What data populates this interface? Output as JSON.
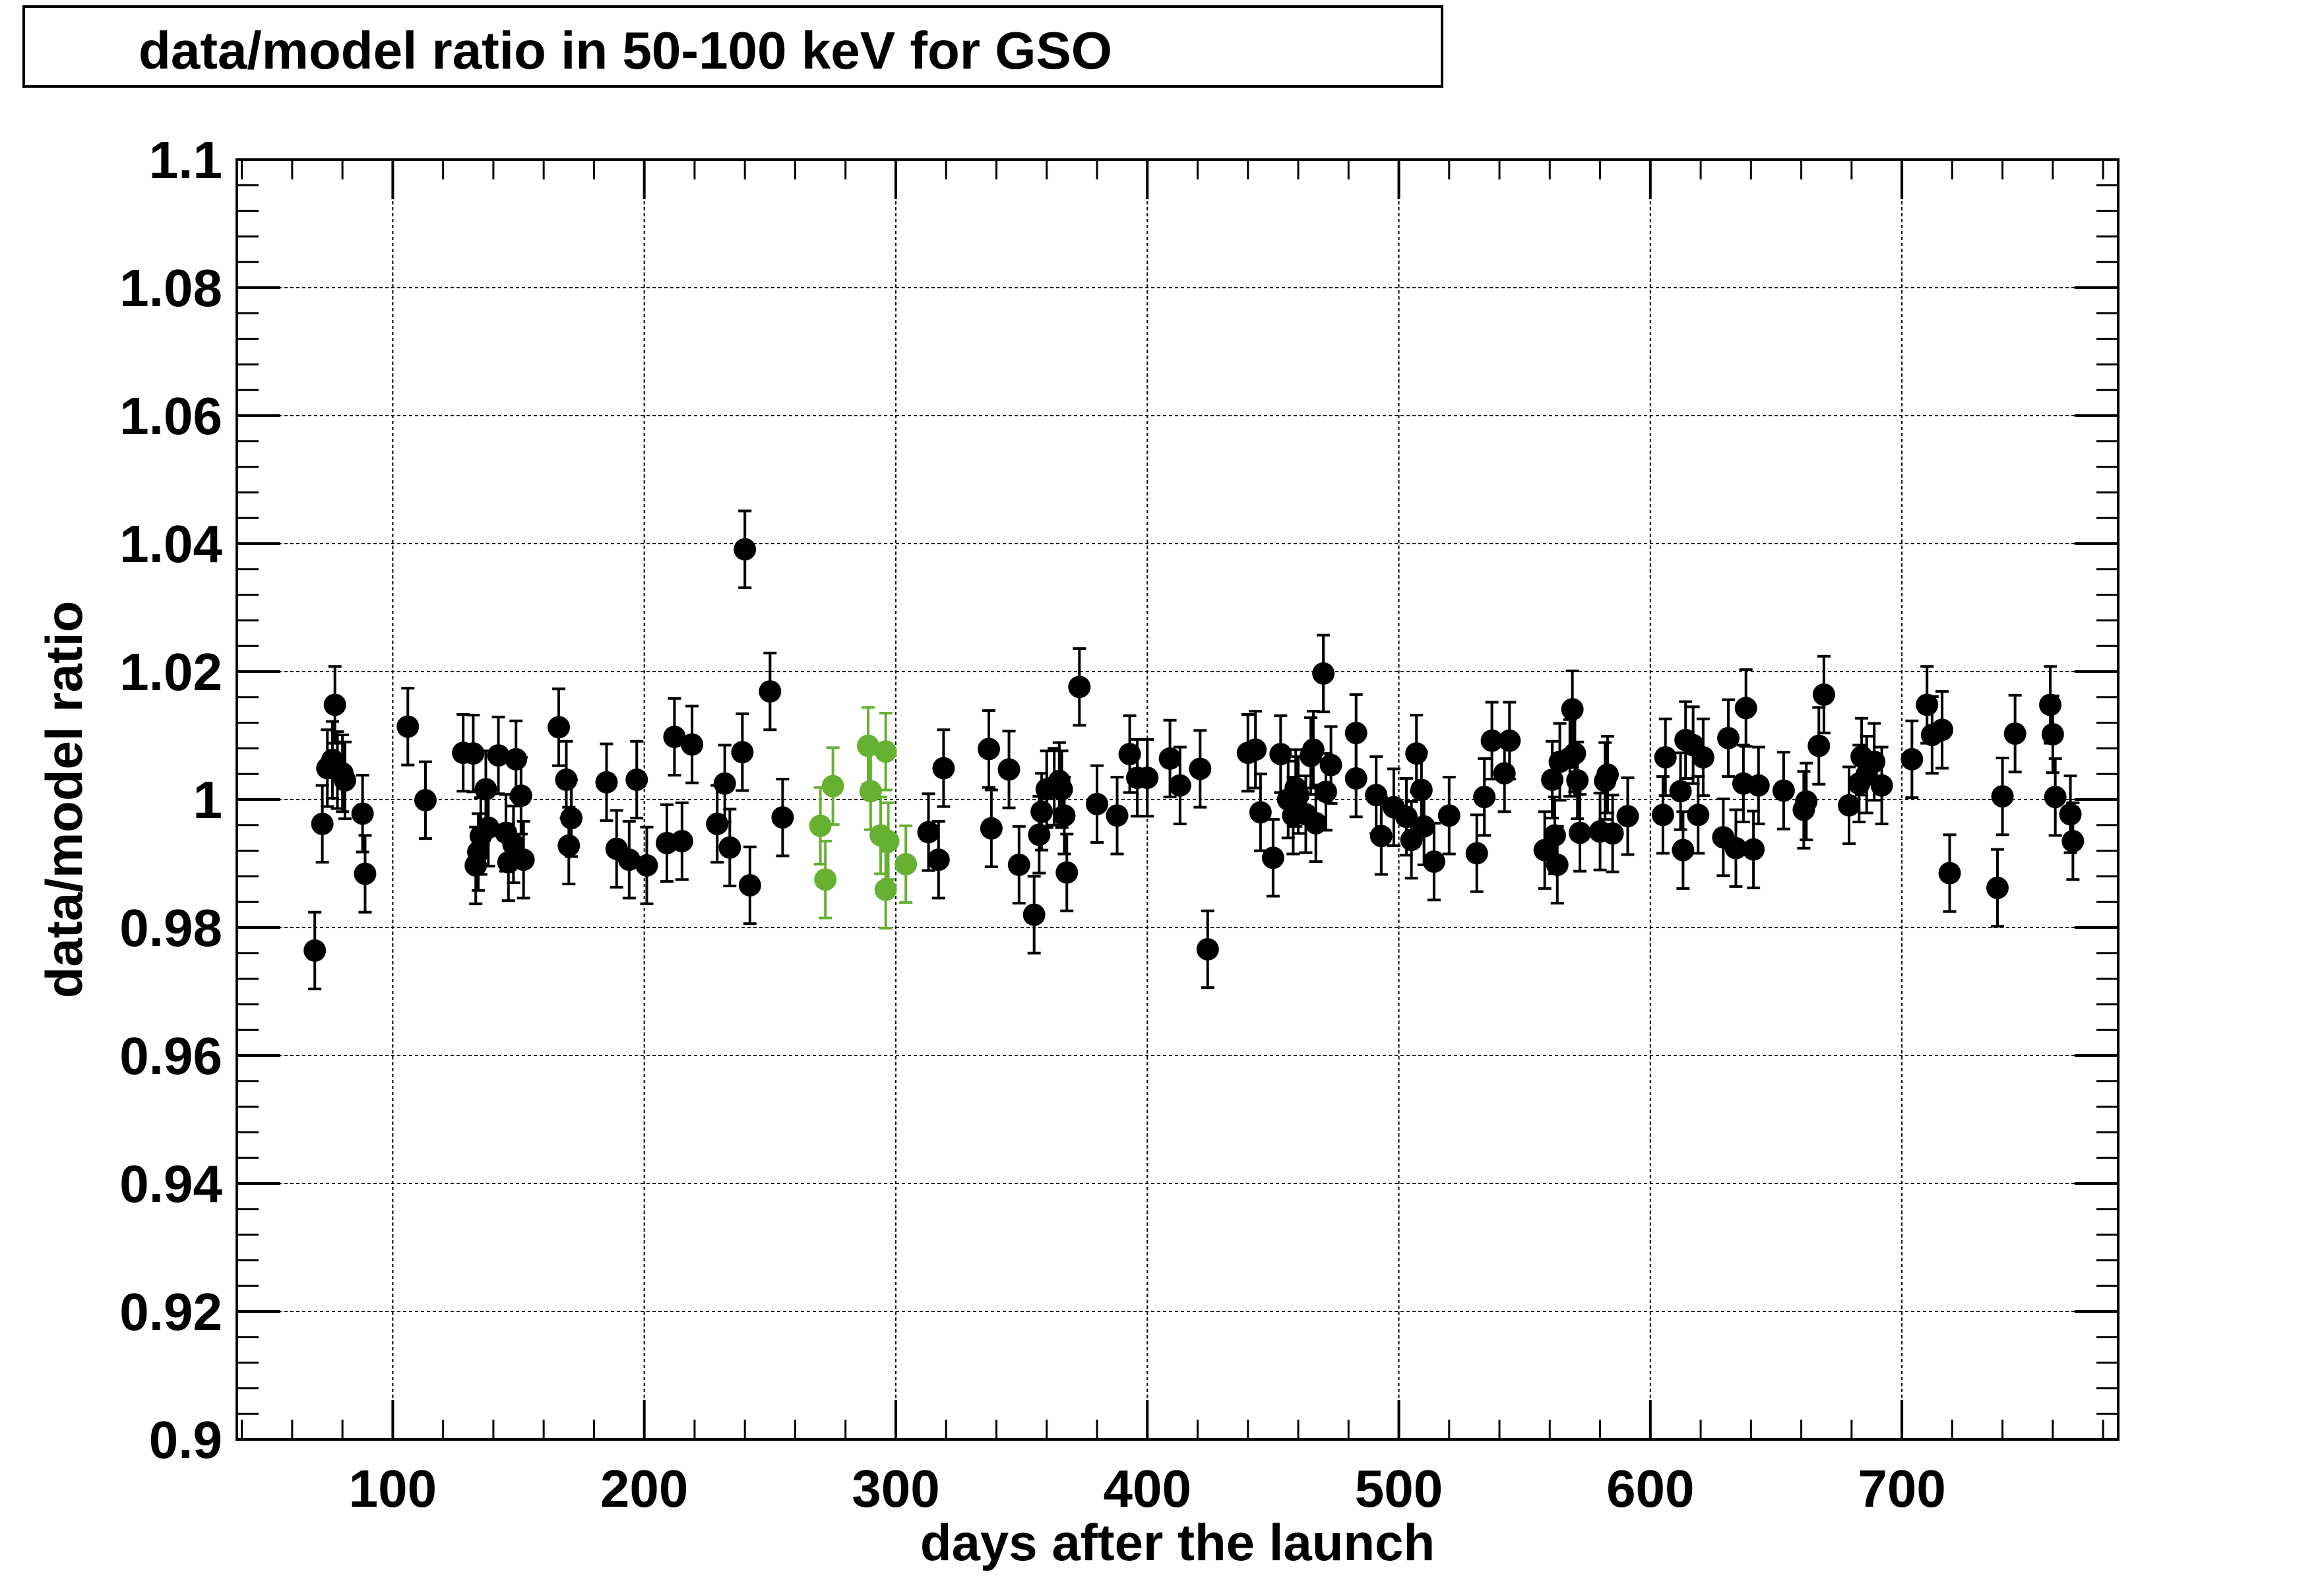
{
  "chart_data": {
    "type": "scatter",
    "title": "data/model ratio in 50-100 keV for GSO",
    "xlabel": "days after the launch",
    "ylabel": "data/model ratio",
    "xlim": [
      38,
      786
    ],
    "ylim": [
      0.9,
      1.1
    ],
    "xticks": [
      100,
      200,
      300,
      400,
      500,
      600,
      700
    ],
    "xtick_labels": [
      "100",
      "200",
      "300",
      "400",
      "500",
      "600",
      "700"
    ],
    "yticks": [
      0.9,
      0.92,
      0.94,
      0.96,
      0.98,
      1.0,
      1.02,
      1.04,
      1.06,
      1.08,
      1.1
    ],
    "ytick_labels": [
      "0.9",
      "0.92",
      "0.94",
      "0.96",
      "0.98",
      "1",
      "1.02",
      "1.04",
      "1.06",
      "1.08",
      "1.1"
    ],
    "grid": true,
    "colors": {
      "series_main": "#000000",
      "series_highlight": "#66b032",
      "grid": "#000000"
    },
    "series": [
      {
        "color": "#000000",
        "error": 0.006,
        "points": [
          [
            69,
            0.9764
          ],
          [
            72,
            0.9962
          ],
          [
            74,
            1.0049
          ],
          [
            76,
            1.0062
          ],
          [
            77,
            1.0148
          ],
          [
            78,
            1.0046
          ],
          [
            80,
            1.0041
          ],
          [
            81,
            1.003
          ],
          [
            88,
            0.9978
          ],
          [
            89,
            0.9884
          ],
          [
            106,
            1.0114
          ],
          [
            113,
            0.9999
          ],
          [
            128,
            1.0073
          ],
          [
            132,
            1.0072
          ],
          [
            133,
            0.9897
          ],
          [
            134,
            0.9918
          ],
          [
            135,
            0.9943
          ],
          [
            137,
            1.0016
          ],
          [
            138,
            0.9956
          ],
          [
            142,
            1.0069
          ],
          [
            145,
            0.9948
          ],
          [
            146,
            0.9902
          ],
          [
            148,
            0.993
          ],
          [
            149,
            1.0063
          ],
          [
            151,
            1.0006
          ],
          [
            152,
            0.9906
          ],
          [
            166,
            1.0113
          ],
          [
            169,
            1.0031
          ],
          [
            170,
            0.9928
          ],
          [
            171,
            0.9971
          ],
          [
            185,
            1.0027
          ],
          [
            189,
            0.9923
          ],
          [
            194,
            0.9906
          ],
          [
            197,
            1.0031
          ],
          [
            201,
            0.9897
          ],
          [
            209,
            0.9932
          ],
          [
            212,
            1.0098
          ],
          [
            215,
            0.9935
          ],
          [
            219,
            1.0086
          ],
          [
            229,
            0.9962
          ],
          [
            232,
            1.0025
          ],
          [
            234,
            0.9925
          ],
          [
            239,
            1.0074
          ],
          [
            240,
            1.0391
          ],
          [
            242,
            0.9866
          ],
          [
            250,
            1.0169
          ],
          [
            255,
            0.9972
          ],
          [
            313,
            0.9949
          ],
          [
            317,
            0.9906
          ],
          [
            319,
            1.0049
          ],
          [
            337,
            1.0079
          ],
          [
            338,
            0.9955
          ],
          [
            345,
            1.0047
          ],
          [
            349,
            0.9898
          ],
          [
            355,
            0.982
          ],
          [
            357,
            0.9945
          ],
          [
            358,
            0.9981
          ],
          [
            360,
            1.0016
          ],
          [
            363,
            1.002
          ],
          [
            365,
            1.0029
          ],
          [
            366,
            1.0016
          ],
          [
            367,
            0.9975
          ],
          [
            368,
            0.9886
          ],
          [
            373,
            1.0176
          ],
          [
            380,
            0.9993
          ],
          [
            388,
            0.9975
          ],
          [
            393,
            1.0071
          ],
          [
            396,
            1.0034
          ],
          [
            400,
            1.0034
          ],
          [
            409,
            1.0064
          ],
          [
            413,
            1.0022
          ],
          [
            421,
            1.0048
          ],
          [
            424,
            0.9766
          ],
          [
            440,
            1.0073
          ],
          [
            443,
            1.0078
          ],
          [
            445,
            0.998
          ],
          [
            450,
            0.9909
          ],
          [
            453,
            1.0071
          ],
          [
            456,
            1.0
          ],
          [
            458,
            0.9975
          ],
          [
            459,
            1.0018
          ],
          [
            460,
            1.0007
          ],
          [
            463,
            0.9977
          ],
          [
            465,
            1.0068
          ],
          [
            466,
            1.0078
          ],
          [
            467,
            0.9963
          ],
          [
            470,
            1.0197
          ],
          [
            471,
            1.0012
          ],
          [
            473,
            1.0054
          ],
          [
            483,
            1.0033
          ],
          [
            483,
            1.0104
          ],
          [
            491,
            1.0007
          ],
          [
            493,
            0.9943
          ],
          [
            498,
            0.9988
          ],
          [
            503,
            0.9973
          ],
          [
            505,
            0.9937
          ],
          [
            507,
            1.0072
          ],
          [
            509,
            1.0015
          ],
          [
            510,
            0.9958
          ],
          [
            514,
            0.9903
          ],
          [
            520,
            0.9975
          ],
          [
            531,
            0.9916
          ],
          [
            534,
            1.0004
          ],
          [
            537,
            1.0092
          ],
          [
            542,
            1.0041
          ],
          [
            544,
            1.0092
          ],
          [
            558,
            0.9921
          ],
          [
            561,
            1.0031
          ],
          [
            562,
            0.9944
          ],
          [
            563,
            0.9898
          ],
          [
            564,
            1.0059
          ],
          [
            568,
            1.0065
          ],
          [
            569,
            1.0141
          ],
          [
            570,
            1.0072
          ],
          [
            571,
            1.003
          ],
          [
            572,
            0.9948
          ],
          [
            580,
            0.995
          ],
          [
            582,
            1.0029
          ],
          [
            583,
            1.0039
          ],
          [
            585,
            0.9947
          ],
          [
            591,
            0.9974
          ],
          [
            605,
            0.9976
          ],
          [
            606,
            1.0066
          ],
          [
            612,
            1.0013
          ],
          [
            613,
            0.9921
          ],
          [
            614,
            1.0093
          ],
          [
            617,
            1.0085
          ],
          [
            619,
            0.9976
          ],
          [
            621,
            1.0066
          ],
          [
            629,
            0.9941
          ],
          [
            631,
            1.0096
          ],
          [
            634,
            0.9924
          ],
          [
            637,
            1.0025
          ],
          [
            638,
            1.0143
          ],
          [
            641,
            0.9922
          ],
          [
            643,
            1.0022
          ],
          [
            653,
            1.0014
          ],
          [
            661,
            0.9984
          ],
          [
            662,
            0.9997
          ],
          [
            667,
            1.0084
          ],
          [
            669,
            1.0164
          ],
          [
            679,
            0.9991
          ],
          [
            683,
            1.0025
          ],
          [
            684,
            1.0067
          ],
          [
            686,
            1.0039
          ],
          [
            689,
            1.0059
          ],
          [
            692,
            1.0022
          ],
          [
            704,
            1.0063
          ],
          [
            710,
            1.0148
          ],
          [
            712,
            1.0101
          ],
          [
            716,
            1.0109
          ],
          [
            719,
            0.9885
          ],
          [
            738,
            0.9862
          ],
          [
            740,
            1.0005
          ],
          [
            745,
            1.0103
          ],
          [
            759,
            1.0148
          ],
          [
            760,
            1.0102
          ],
          [
            761,
            1.0004
          ],
          [
            767,
            0.9977
          ],
          [
            768,
            0.9935
          ]
        ]
      },
      {
        "color": "#66b032",
        "error": 0.006,
        "points": [
          [
            270,
            0.9959
          ],
          [
            272,
            0.9875
          ],
          [
            275,
            1.0021
          ],
          [
            289,
            1.0084
          ],
          [
            290,
            1.0013
          ],
          [
            294,
            0.9944
          ],
          [
            296,
            0.9859
          ],
          [
            296,
            1.0075
          ],
          [
            297,
            0.9935
          ],
          [
            304,
            0.9899
          ]
        ]
      }
    ]
  }
}
